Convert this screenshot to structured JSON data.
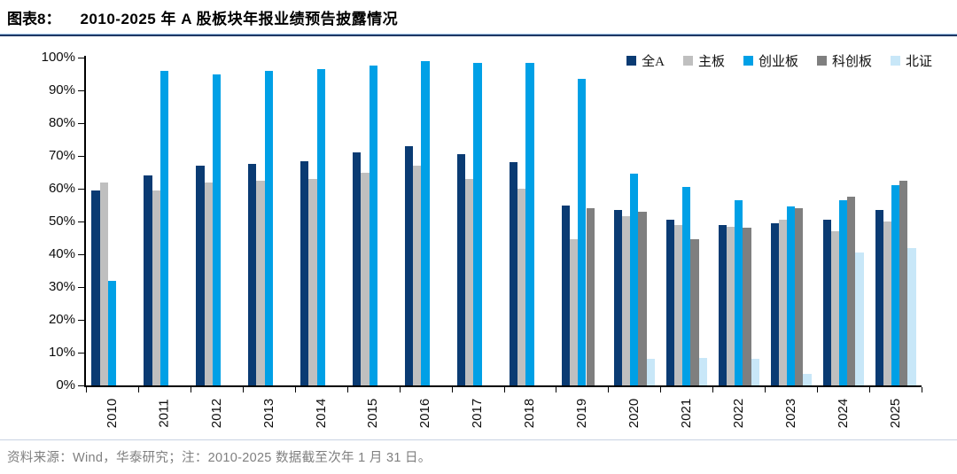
{
  "header": {
    "tag": "图表8：",
    "title": "2010-2025 年 A 股板块年报业绩预告披露情况"
  },
  "footer": {
    "text": "资料来源：Wind，华泰研究；注：2010-2025 数据截至次年 1 月 31 日。"
  },
  "colors": {
    "header_rule_top": "#9dc3e6",
    "header_rule": "#1f3864",
    "axis": "#000000",
    "footer_rule": "#c9d3e2",
    "footer_text": "#7f7f7f"
  },
  "chart_data": {
    "type": "bar",
    "title": "2010-2025 年 A 股板块年报业绩预告披露情况",
    "xlabel": "",
    "ylabel": "",
    "ylim": [
      0,
      100
    ],
    "ytick_step": 10,
    "ytick_suffix": "%",
    "grid": false,
    "legend_position": "top-right",
    "categories": [
      "2010",
      "2011",
      "2012",
      "2013",
      "2014",
      "2015",
      "2016",
      "2017",
      "2018",
      "2019",
      "2020",
      "2021",
      "2022",
      "2023",
      "2024",
      "2025"
    ],
    "series": [
      {
        "name": "全A",
        "color": "#0a3b73",
        "values": [
          59.5,
          64,
          67,
          67.5,
          68.5,
          71,
          73,
          70.5,
          68,
          55,
          53.5,
          50.5,
          49,
          49.5,
          50.5,
          53.5
        ]
      },
      {
        "name": "主板",
        "color": "#bfbfbf",
        "values": [
          62,
          59.5,
          62,
          62.5,
          63,
          65,
          67,
          63,
          60,
          44.5,
          51.5,
          49,
          48.5,
          50.5,
          47,
          50
        ]
      },
      {
        "name": "创业板",
        "color": "#00a0e6",
        "values": [
          32,
          96,
          95,
          96,
          96.5,
          97.5,
          99,
          98.5,
          98.5,
          93.5,
          64.5,
          60.5,
          56.5,
          54.5,
          56.5,
          61
        ]
      },
      {
        "name": "科创板",
        "color": "#7f7f7f",
        "values": [
          null,
          null,
          null,
          null,
          null,
          null,
          null,
          null,
          null,
          54,
          53,
          44.5,
          48,
          54,
          57.5,
          62.5
        ]
      },
      {
        "name": "北证",
        "color": "#c8e7f8",
        "values": [
          null,
          null,
          null,
          null,
          null,
          null,
          null,
          null,
          null,
          null,
          8,
          8.5,
          8,
          3.5,
          40.5,
          42
        ]
      }
    ]
  }
}
